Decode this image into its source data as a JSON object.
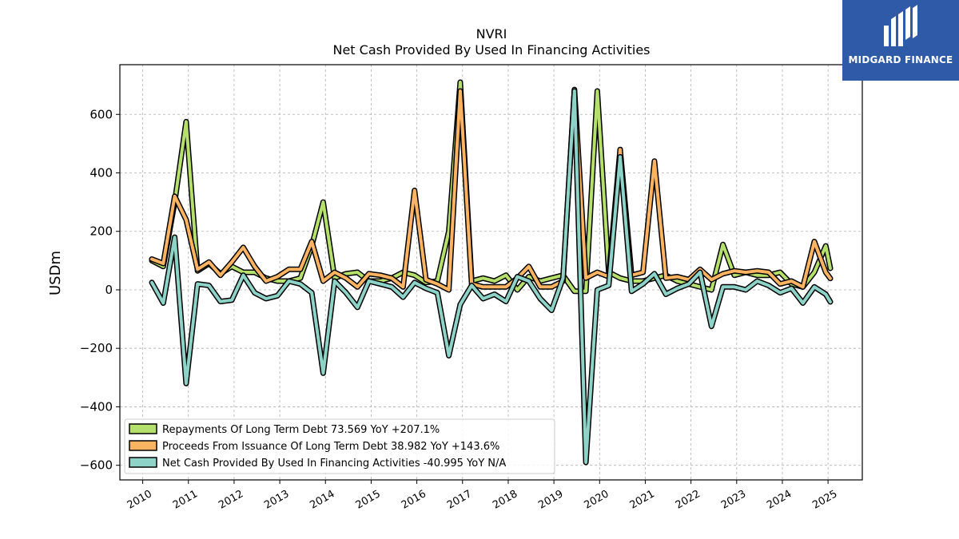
{
  "brand": {
    "name": "MIDGARD FINANCE",
    "bg_color": "#2f5aa8"
  },
  "chart_data": {
    "type": "line",
    "title": "NVRI",
    "subtitle": "Net Cash Provided By Used In Financing Activities",
    "ylabel": "USDm",
    "xlabel": "",
    "xlim": [
      2009.5,
      2025.75
    ],
    "ylim": [
      -650,
      770
    ],
    "yticks": [
      -600,
      -400,
      -200,
      0,
      200,
      400,
      600
    ],
    "ytick_labels": [
      "−600",
      "−400",
      "−200",
      "0",
      "200",
      "400",
      "600"
    ],
    "xticks": [
      2010,
      2011,
      2012,
      2013,
      2014,
      2015,
      2016,
      2017,
      2018,
      2019,
      2020,
      2021,
      2022,
      2023,
      2024,
      2025
    ],
    "xtick_labels": [
      "2010",
      "2011",
      "2012",
      "2013",
      "2014",
      "2015",
      "2016",
      "2017",
      "2018",
      "2019",
      "2020",
      "2021",
      "2022",
      "2023",
      "2024",
      "2025"
    ],
    "grid": true,
    "legend_position": "lower-left",
    "x": [
      2010.2,
      2010.45,
      2010.7,
      2010.95,
      2011.2,
      2011.45,
      2011.7,
      2011.95,
      2012.2,
      2012.45,
      2012.7,
      2012.95,
      2013.2,
      2013.45,
      2013.7,
      2013.95,
      2014.2,
      2014.45,
      2014.7,
      2014.95,
      2015.2,
      2015.45,
      2015.7,
      2015.95,
      2016.2,
      2016.45,
      2016.7,
      2016.95,
      2017.2,
      2017.45,
      2017.7,
      2017.95,
      2018.2,
      2018.45,
      2018.7,
      2018.95,
      2019.2,
      2019.45,
      2019.7,
      2019.95,
      2020.2,
      2020.45,
      2020.7,
      2020.95,
      2021.2,
      2021.45,
      2021.7,
      2021.95,
      2022.2,
      2022.45,
      2022.7,
      2022.95,
      2023.2,
      2023.45,
      2023.7,
      2023.95,
      2024.2,
      2024.45,
      2024.7,
      2024.95,
      2025.05
    ],
    "series": [
      {
        "name": "Repayments Of Long Term Debt  73.569 YoY +207.1%",
        "color": "#b5e06b",
        "values": [
          100,
          80,
          300,
          575,
          65,
          90,
          55,
          80,
          60,
          60,
          40,
          30,
          30,
          40,
          150,
          300,
          40,
          55,
          60,
          30,
          30,
          40,
          60,
          50,
          25,
          30,
          200,
          710,
          30,
          40,
          30,
          50,
          0,
          45,
          30,
          40,
          50,
          -5,
          -5,
          680,
          60,
          40,
          30,
          30,
          40,
          50,
          30,
          20,
          10,
          0,
          155,
          50,
          60,
          50,
          50,
          60,
          20,
          10,
          60,
          150,
          73.569
        ]
      },
      {
        "name": "Proceeds From Issuance Of Long Term Debt  38.982 YoY +143.6%",
        "color": "#fdb462",
        "values": [
          105,
          90,
          320,
          240,
          70,
          95,
          50,
          95,
          145,
          80,
          30,
          45,
          70,
          70,
          165,
          30,
          60,
          40,
          10,
          55,
          50,
          40,
          10,
          340,
          35,
          20,
          0,
          680,
          20,
          10,
          10,
          10,
          40,
          80,
          10,
          10,
          30,
          685,
          40,
          60,
          45,
          480,
          50,
          60,
          440,
          40,
          45,
          35,
          70,
          35,
          55,
          65,
          60,
          65,
          60,
          20,
          30,
          10,
          165,
          60,
          38.982
        ]
      },
      {
        "name": "Net Cash Provided By Used In Financing Activities  -40.995 YoY N/A",
        "color": "#8dd3c7",
        "values": [
          25,
          -45,
          180,
          -320,
          20,
          15,
          -40,
          -35,
          50,
          -10,
          -30,
          -20,
          30,
          20,
          -10,
          -285,
          30,
          -10,
          -60,
          30,
          20,
          10,
          -25,
          25,
          5,
          -10,
          -225,
          -50,
          15,
          -30,
          -15,
          -40,
          45,
          30,
          -30,
          -70,
          40,
          680,
          -590,
          0,
          15,
          455,
          -5,
          20,
          55,
          -15,
          5,
          20,
          60,
          -125,
          10,
          10,
          0,
          30,
          15,
          -10,
          5,
          -45,
          10,
          -15,
          -40.995
        ]
      }
    ]
  }
}
